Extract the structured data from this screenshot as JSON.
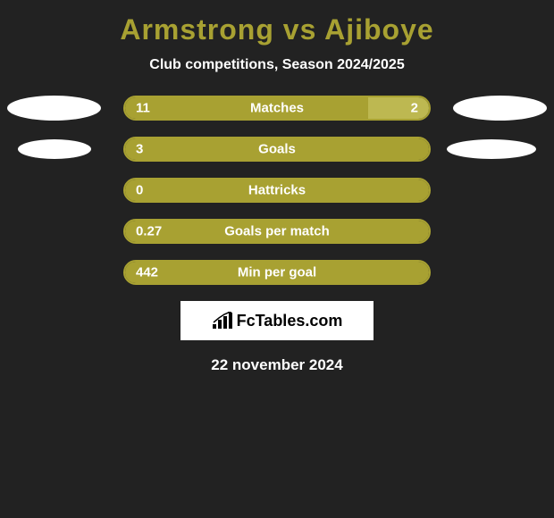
{
  "title": "Armstrong vs Ajiboye",
  "title_color": "#a8a132",
  "subtitle": "Club competitions, Season 2024/2025",
  "background_color": "#222222",
  "text_color": "#ffffff",
  "bars": {
    "left_color": "#a8a132",
    "right_color": "#bdb851",
    "border_color": "#a8a132",
    "rows": [
      {
        "label": "Matches",
        "left_value": "11",
        "right_value": "2",
        "left_pct": 80,
        "right_pct": 20,
        "show_right": true,
        "show_avatars": true,
        "avatar_left_width": 105,
        "avatar_right_width": 105
      },
      {
        "label": "Goals",
        "left_value": "3",
        "right_value": "",
        "left_pct": 100,
        "right_pct": 0,
        "show_right": false,
        "show_avatars": true,
        "avatar_left_width": 82,
        "avatar_right_width": 100
      },
      {
        "label": "Hattricks",
        "left_value": "0",
        "right_value": "",
        "left_pct": 100,
        "right_pct": 0,
        "show_right": false,
        "show_avatars": false
      },
      {
        "label": "Goals per match",
        "left_value": "0.27",
        "right_value": "",
        "left_pct": 100,
        "right_pct": 0,
        "show_right": false,
        "show_avatars": false
      },
      {
        "label": "Min per goal",
        "left_value": "442",
        "right_value": "",
        "left_pct": 100,
        "right_pct": 0,
        "show_right": false,
        "show_avatars": false
      }
    ]
  },
  "logo": {
    "text": "FcTables.com",
    "text_color": "#000000",
    "box_bg": "#ffffff"
  },
  "date": "22 november 2024"
}
